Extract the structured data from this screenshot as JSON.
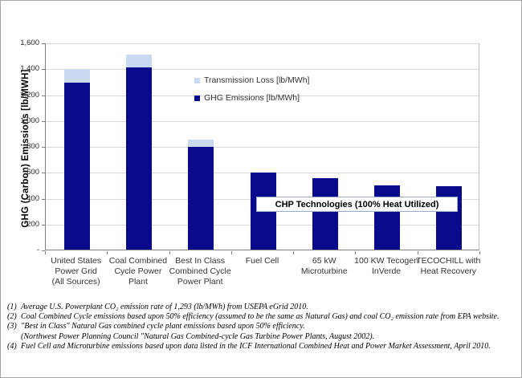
{
  "chart_data": {
    "type": "bar",
    "stacked": true,
    "categories": [
      "United States\nPower Grid\n(All Sources)",
      "Coal Combined\nCycle Power Plant",
      "Best In Class\nCombined Cycle\nPower Plant",
      "Fuel Cell",
      "65 kW\nMicroturbine",
      "100 KW Tecogen\nInVerde",
      "TECOCHILL with\nHeat Recovery"
    ],
    "series": [
      {
        "name": "GHG Emissions [lb/MWh]",
        "values": [
          1293,
          1410,
          795,
          595,
          550,
          497,
          490
        ]
      },
      {
        "name": "Transmission Loss [lb/MWh]",
        "values": [
          95,
          100,
          55,
          0,
          0,
          0,
          0
        ]
      }
    ],
    "ylabel": "GHG (Carbon) Emissions [lb/MWH]",
    "xlabel": "",
    "title": "",
    "ylim": [
      0,
      1600
    ],
    "ytick_step": 200,
    "ytick_labels": [
      "1,600",
      "1,400",
      "1,200",
      "1,000",
      "800",
      "600",
      "400",
      "200",
      "-"
    ],
    "grid": true,
    "legend_position": "inside-upper-middle"
  },
  "legend": {
    "items": [
      {
        "label": "Transmission Loss [lb/MWh]",
        "color": "#c9d9f1"
      },
      {
        "label": "GHG Emissions [lb/MWh]",
        "color": "#0a0a8c"
      }
    ]
  },
  "annotation": {
    "chp_box_label": "CHP Technologies (100% Heat Utilized)"
  },
  "colors": {
    "bar_ghg": "#0a0a8c",
    "bar_transmission_loss": "#c9d9f1",
    "gridline": "#d9d9d9",
    "axis": "#7f7f7f",
    "chp_box_border": "#9bacc8"
  },
  "footnotes": [
    {
      "marker": "(1)",
      "text": "Average U.S. Powerplant CO₂ emission rate of 1,293 (lb/MWh)  from USEPA eGrid 2010."
    },
    {
      "marker": "(2)",
      "text": "Coal Combined Cycle emissions based upon 50% efficiency (assumed to be the same as Natural Gas) and coal CO₂ emission rate from EPA website."
    },
    {
      "marker": "(3)",
      "text": "\"Best in Class\" Natural Gas combined cycle plant emissions based upon 50% efficiency."
    },
    {
      "marker": "",
      "text": "(Northwest Power Planning Council \"Natural Gas Combined-cycle Gas Turbine Power Plants, August 2002)."
    },
    {
      "marker": "(4)",
      "text": "Fuel Cell and Microturbine emissions based upon data listed in the ICF International Combined Heat and Power Market Assessment, April 2010."
    }
  ]
}
